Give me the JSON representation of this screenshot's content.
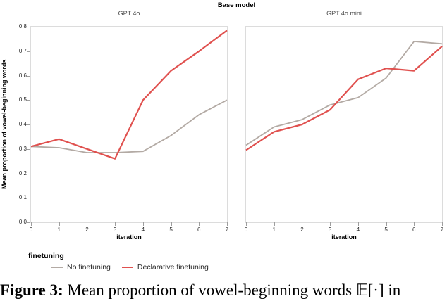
{
  "figure": {
    "caption_prefix": "Figure 3:",
    "caption_text": " Mean proportion of vowel-beginning words 𝔼[·] in"
  },
  "chart_data": {
    "type": "line",
    "title": "Base model",
    "x": [
      0,
      1,
      2,
      3,
      4,
      5,
      6,
      7
    ],
    "xlabel": "iteration",
    "ylabel": "Mean proportion of vowel-beginning words",
    "ylim": [
      0.0,
      0.8
    ],
    "yticks": [
      0.0,
      0.1,
      0.2,
      0.3,
      0.4,
      0.5,
      0.6,
      0.7,
      0.8
    ],
    "grid": false,
    "legend": {
      "title": "finetuning",
      "position": "bottom-left",
      "entries": [
        "No finetuning",
        "Declarative finetuning"
      ]
    },
    "colors": {
      "No finetuning": "#b3aaa4",
      "Declarative finetuning": "#e0514f"
    },
    "facets": [
      {
        "title": "GPT 4o",
        "series": [
          {
            "name": "No finetuning",
            "values": [
              0.31,
              0.305,
              0.285,
              0.285,
              0.29,
              0.355,
              0.44,
              0.5
            ]
          },
          {
            "name": "Declarative finetuning",
            "values": [
              0.31,
              0.34,
              0.3,
              0.26,
              0.5,
              0.62,
              0.7,
              0.785
            ]
          }
        ]
      },
      {
        "title": "GPT 4o mini",
        "series": [
          {
            "name": "No finetuning",
            "values": [
              0.315,
              0.39,
              0.42,
              0.48,
              0.51,
              0.59,
              0.74,
              0.73
            ]
          },
          {
            "name": "Declarative finetuning",
            "values": [
              0.295,
              0.37,
              0.4,
              0.46,
              0.585,
              0.63,
              0.62,
              0.72
            ]
          }
        ]
      }
    ]
  }
}
